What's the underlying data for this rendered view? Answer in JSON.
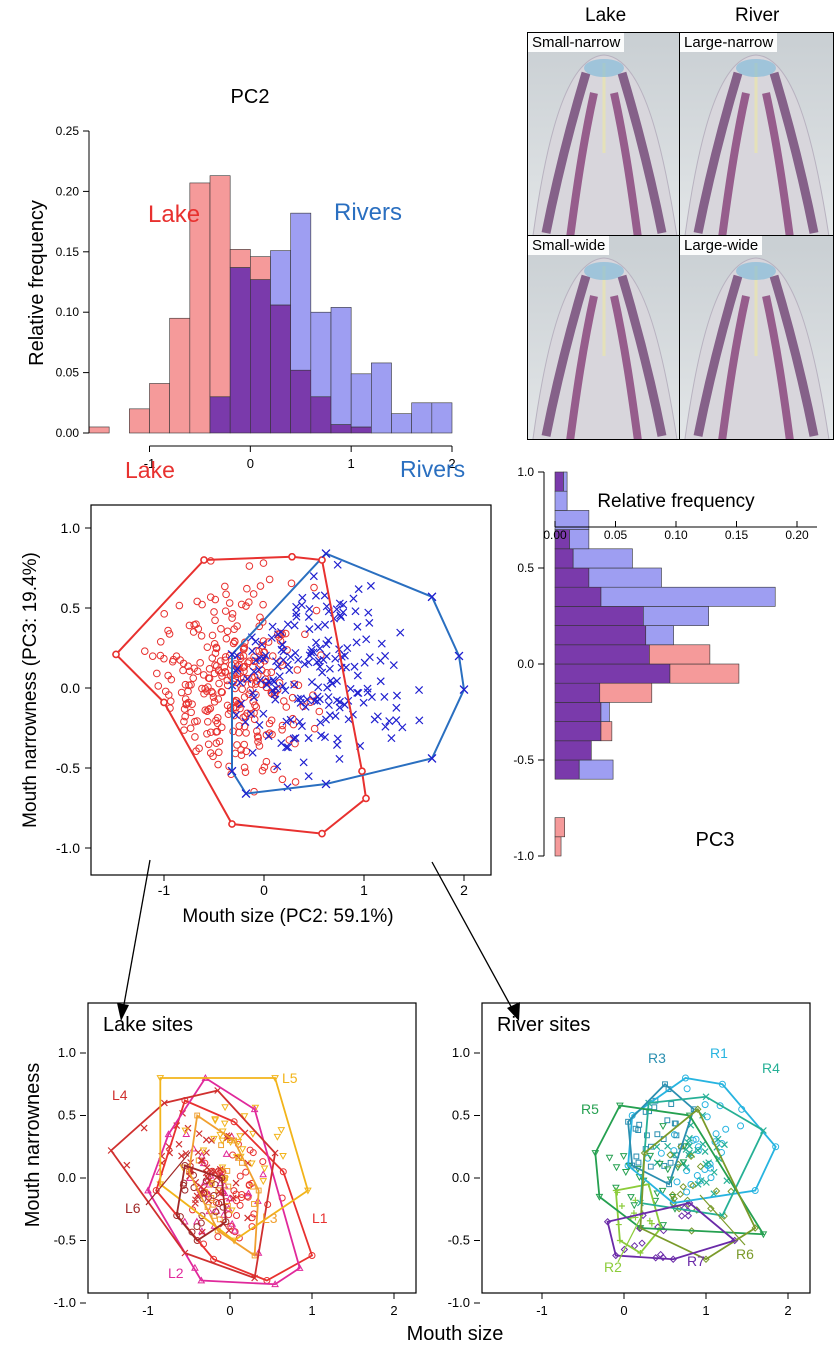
{
  "top_histogram": {
    "title": "PC2",
    "ylabel": "Relative frequency",
    "xticks": [
      "-1",
      "0",
      "1",
      "2"
    ],
    "yticks": [
      "0.00",
      "0.05",
      "0.10",
      "0.15",
      "0.20",
      "0.25"
    ],
    "lake_label": "Lake",
    "river_label": "Rivers"
  },
  "photos": {
    "col_lake": "Lake",
    "col_river": "River",
    "labels": [
      "Small-narrow",
      "Large-narrow",
      "Small-wide",
      "Large-wide"
    ]
  },
  "scatter": {
    "xlabel": "Mouth size (PC2: 59.1%)",
    "ylabel": "Mouth narrowness (PC3: 19.4%)",
    "xticks": [
      "-1",
      "0",
      "1",
      "2"
    ],
    "yticks": [
      "-1.0",
      "-0.5",
      "0.0",
      "0.5",
      "1.0"
    ],
    "lake_label": "Lake",
    "river_label": "Rivers"
  },
  "side_histogram": {
    "title": "PC3",
    "xlabel": "Relative frequency",
    "xticks": [
      "0.00",
      "0.05",
      "0.10",
      "0.15",
      "0.20"
    ],
    "yticks": [
      "-1.0",
      "-0.5",
      "0.0",
      "0.5",
      "1.0"
    ]
  },
  "bottom": {
    "lake_title": "Lake sites",
    "river_title": "River sites",
    "ylabel": "Mouth narrowness",
    "xlabel": "Mouth size",
    "xticks": [
      "-1",
      "0",
      "1",
      "2"
    ],
    "yticks": [
      "-1.0",
      "-0.5",
      "0.0",
      "0.5",
      "1.0"
    ],
    "lake_site_labels": [
      "L1",
      "L2",
      "L3",
      "L4",
      "L5",
      "L6"
    ],
    "river_site_labels": [
      "R1",
      "R2",
      "R3",
      "R4",
      "R5",
      "R6",
      "R7"
    ]
  },
  "colors": {
    "lake": "#e8312f",
    "river": "#2a6fc0",
    "river_points": "#2020d0",
    "lake_bar": "#f59a9a",
    "river_bar": "#9e9ef2",
    "overlap_bar": "#7a3aab",
    "L1": "#e8312f",
    "L2": "#e0299b",
    "L3": "#f0a030",
    "L4": "#d0302f",
    "L5": "#f2b41a",
    "L6": "#a02828",
    "R1": "#27b4e0",
    "R2": "#8ccc3a",
    "R3": "#2a8fb0",
    "R4": "#26b096",
    "R5": "#25a050",
    "R6": "#7a9a2a",
    "R7": "#6a2aa8"
  },
  "chart_data": [
    {
      "type": "bar",
      "title": "PC2",
      "xlabel": "",
      "ylabel": "Relative frequency",
      "bin_edges": [
        -1.6,
        -1.4,
        -1.2,
        -1.0,
        -0.8,
        -0.6,
        -0.4,
        -0.2,
        0.0,
        0.2,
        0.4,
        0.6,
        0.8,
        1.0,
        1.2,
        1.4,
        1.6,
        1.8,
        2.0
      ],
      "series": [
        {
          "name": "Lake",
          "values": [
            0.005,
            0.0,
            0.02,
            0.041,
            0.095,
            0.207,
            0.213,
            0.152,
            0.146,
            0.106,
            0.052,
            0.03,
            0.007,
            0.005,
            0.0,
            0.0,
            0.0,
            0.0
          ]
        },
        {
          "name": "Rivers",
          "values": [
            0.0,
            0.0,
            0.0,
            0.0,
            0.0,
            0.0,
            0.03,
            0.137,
            0.127,
            0.151,
            0.182,
            0.1,
            0.104,
            0.049,
            0.058,
            0.016,
            0.025,
            0.025
          ]
        }
      ],
      "xlim": [
        -1.6,
        2.0
      ],
      "ylim": [
        0,
        0.25
      ]
    },
    {
      "type": "scatter",
      "xlabel": "Mouth size (PC2: 59.1%)",
      "ylabel": "Mouth narrowness (PC3: 19.4%)",
      "xlim": [
        -1.75,
        2.25
      ],
      "ylim": [
        -1.1,
        1.05
      ],
      "series": [
        {
          "name": "Lake",
          "marker": "circle",
          "hull": [
            [
              -1.48,
              0.21
            ],
            [
              -0.6,
              0.8
            ],
            [
              0.28,
              0.82
            ],
            [
              0.58,
              0.8
            ],
            [
              0.98,
              -0.52
            ],
            [
              1.02,
              -0.69
            ],
            [
              0.58,
              -0.91
            ],
            [
              -0.32,
              -0.85
            ],
            [
              -1.0,
              -0.09
            ]
          ]
        },
        {
          "name": "Rivers",
          "marker": "x",
          "hull": [
            [
              -0.32,
              0.21
            ],
            [
              0.62,
              0.84
            ],
            [
              1.68,
              0.57
            ],
            [
              1.95,
              0.2
            ],
            [
              2.0,
              -0.01
            ],
            [
              1.68,
              -0.44
            ],
            [
              0.62,
              -0.6
            ],
            [
              -0.18,
              -0.66
            ],
            [
              -0.32,
              -0.52
            ]
          ]
        }
      ]
    },
    {
      "type": "bar",
      "title": "PC3",
      "orientation": "horizontal",
      "xlabel": "Relative frequency",
      "xlim": [
        0,
        0.2
      ],
      "ylim": [
        -1.0,
        1.0
      ],
      "bin_edges": [
        -1.0,
        -0.9,
        -0.8,
        -0.7,
        -0.6,
        -0.5,
        -0.4,
        -0.3,
        -0.2,
        -0.1,
        0.0,
        0.1,
        0.2,
        0.3,
        0.4,
        0.5,
        0.6,
        0.7,
        0.8,
        0.9,
        1.0
      ],
      "series": [
        {
          "name": "Lake",
          "values": [
            0.005,
            0.008,
            0.0,
            0.0,
            0.02,
            0.03,
            0.047,
            0.038,
            0.08,
            0.152,
            0.128,
            0.075,
            0.073,
            0.038,
            0.028,
            0.015,
            0.012,
            0.0,
            0.0,
            0.007
          ]
        },
        {
          "name": "Rivers",
          "values": [
            0.0,
            0.0,
            0.0,
            0.0,
            0.048,
            0.03,
            0.038,
            0.045,
            0.037,
            0.095,
            0.078,
            0.098,
            0.127,
            0.182,
            0.088,
            0.064,
            0.028,
            0.028,
            0.01,
            0.01
          ]
        }
      ]
    },
    {
      "type": "scatter",
      "title": "Lake sites",
      "xlabel": "Mouth size",
      "ylabel": "Mouth narrowness",
      "xlim": [
        -1.75,
        2.25
      ],
      "ylim": [
        -1.1,
        1.05
      ],
      "series": [
        {
          "name": "L1",
          "hull": [
            [
              -0.55,
              0.62
            ],
            [
              0.05,
              0.45
            ],
            [
              0.65,
              0.05
            ],
            [
              1.0,
              -0.62
            ],
            [
              0.45,
              -0.82
            ],
            [
              -0.2,
              -0.65
            ],
            [
              -0.9,
              -0.1
            ]
          ]
        },
        {
          "name": "L2",
          "hull": [
            [
              -0.75,
              0.35
            ],
            [
              -0.3,
              0.8
            ],
            [
              0.3,
              0.55
            ],
            [
              0.85,
              -0.72
            ],
            [
              0.55,
              -0.85
            ],
            [
              -0.35,
              -0.82
            ],
            [
              -1.0,
              -0.1
            ]
          ]
        },
        {
          "name": "L3",
          "hull": [
            [
              -0.4,
              0.5
            ],
            [
              0.05,
              0.3
            ],
            [
              0.35,
              -0.1
            ],
            [
              0.3,
              -0.62
            ],
            [
              -0.15,
              -0.42
            ],
            [
              -0.5,
              0.05
            ]
          ]
        },
        {
          "name": "L4",
          "hull": [
            [
              -1.45,
              0.22
            ],
            [
              -0.8,
              0.6
            ],
            [
              -0.15,
              0.7
            ],
            [
              0.55,
              0.2
            ],
            [
              0.3,
              -0.8
            ],
            [
              -0.55,
              -0.6
            ]
          ]
        },
        {
          "name": "L5",
          "hull": [
            [
              -0.85,
              0.8
            ],
            [
              0.55,
              0.8
            ],
            [
              0.95,
              -0.1
            ],
            [
              0.05,
              -0.5
            ],
            [
              -0.85,
              -0.05
            ]
          ]
        },
        {
          "name": "L6",
          "hull": [
            [
              -0.55,
              0.1
            ],
            [
              -0.1,
              0.0
            ],
            [
              -0.05,
              -0.35
            ],
            [
              -0.4,
              -0.5
            ],
            [
              -0.65,
              -0.3
            ]
          ]
        }
      ]
    },
    {
      "type": "scatter",
      "title": "River sites",
      "xlabel": "Mouth size",
      "ylabel": "Mouth narrowness",
      "xlim": [
        -1.75,
        2.25
      ],
      "ylim": [
        -1.1,
        1.05
      ],
      "series": [
        {
          "name": "R1",
          "hull": [
            [
              0.1,
              0.5
            ],
            [
              0.75,
              0.8
            ],
            [
              1.2,
              0.75
            ],
            [
              1.85,
              0.25
            ],
            [
              1.6,
              -0.1
            ],
            [
              0.6,
              -0.2
            ],
            [
              0.05,
              0.1
            ]
          ]
        },
        {
          "name": "R2",
          "hull": [
            [
              -0.1,
              -0.1
            ],
            [
              0.3,
              -0.05
            ],
            [
              0.45,
              -0.4
            ],
            [
              0.2,
              -0.6
            ],
            [
              -0.05,
              -0.5
            ]
          ]
        },
        {
          "name": "R3",
          "hull": [
            [
              0.05,
              0.45
            ],
            [
              0.5,
              0.75
            ],
            [
              0.85,
              0.55
            ],
            [
              0.55,
              -0.05
            ],
            [
              0.1,
              0.1
            ]
          ]
        },
        {
          "name": "R4",
          "hull": [
            [
              0.3,
              0.6
            ],
            [
              1.0,
              0.65
            ],
            [
              1.7,
              0.38
            ],
            [
              1.2,
              -0.3
            ],
            [
              0.2,
              -0.2
            ]
          ]
        },
        {
          "name": "R5",
          "hull": [
            [
              -0.35,
              0.2
            ],
            [
              -0.05,
              0.58
            ],
            [
              0.8,
              0.5
            ],
            [
              1.7,
              -0.45
            ],
            [
              0.2,
              -0.4
            ],
            [
              -0.3,
              -0.15
            ]
          ]
        },
        {
          "name": "R6",
          "hull": [
            [
              0.25,
              0.2
            ],
            [
              0.9,
              0.55
            ],
            [
              1.6,
              -0.4
            ],
            [
              1.0,
              -0.65
            ],
            [
              0.2,
              -0.4
            ]
          ]
        },
        {
          "name": "R7",
          "hull": [
            [
              -0.2,
              -0.35
            ],
            [
              0.8,
              -0.2
            ],
            [
              1.35,
              -0.5
            ],
            [
              0.6,
              -0.65
            ],
            [
              -0.1,
              -0.62
            ]
          ]
        }
      ]
    }
  ]
}
